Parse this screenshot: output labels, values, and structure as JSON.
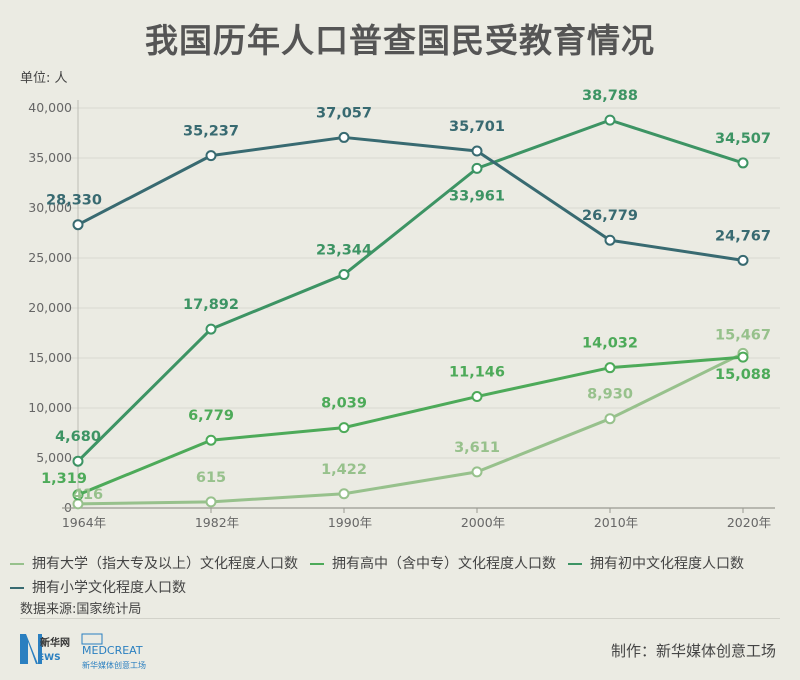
{
  "title": "我国历年人口普查国民受教育情况",
  "source": "数据来源:国家统计局",
  "credit": "制作：新华媒体创意工场",
  "logos": {
    "news": "新华网 NEWS",
    "media": "MEDCREAT 新华媒体创意工场"
  },
  "chart_data": {
    "type": "line",
    "unit_label": "单位: 人",
    "x": [
      "1964年",
      "1982年",
      "1990年",
      "2000年",
      "2010年",
      "2020年"
    ],
    "ylim": [
      0,
      40000
    ],
    "yticks": [
      "0",
      "5,000",
      "10,000",
      "15,000",
      "20,000",
      "25,000",
      "30,000",
      "35,000",
      "40,000"
    ],
    "grid": true,
    "legend_position": "bottom",
    "series": [
      {
        "name": "拥有大学（指大专及以上）文化程度人口数",
        "color": "#97c18c",
        "values": [
          416,
          615,
          1422,
          3611,
          8930,
          15467
        ],
        "labels": [
          "416",
          "615",
          "1,422",
          "3,611",
          "8,930",
          "15,467"
        ]
      },
      {
        "name": "拥有高中（含中专）文化程度人口数",
        "color": "#4daa59",
        "values": [
          1319,
          6779,
          8039,
          11146,
          14032,
          15088
        ],
        "labels": [
          "1,319",
          "6,779",
          "8,039",
          "11,146",
          "14,032",
          "15,088"
        ]
      },
      {
        "name": "拥有初中文化程度人口数",
        "color": "#3d9464",
        "values": [
          4680,
          17892,
          23344,
          33961,
          38788,
          34507
        ],
        "labels": [
          "4,680",
          "17,892",
          "23,344",
          "33,961",
          "38,788",
          "34,507"
        ]
      },
      {
        "name": "拥有小学文化程度人口数",
        "color": "#386a71",
        "values": [
          28330,
          35237,
          37057,
          35701,
          26779,
          24767
        ],
        "labels": [
          "28,330",
          "35,237",
          "37,057",
          "35,701",
          "26,779",
          "24,767"
        ]
      }
    ]
  }
}
